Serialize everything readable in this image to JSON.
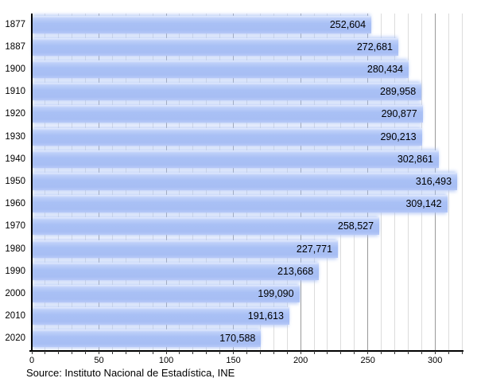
{
  "chart_data": {
    "type": "bar",
    "orientation": "horizontal",
    "title": "",
    "categories": [
      "1877",
      "1887",
      "1900",
      "1910",
      "1920",
      "1930",
      "1940",
      "1950",
      "1960",
      "1970",
      "1980",
      "1990",
      "2000",
      "2010",
      "2020"
    ],
    "values": [
      252604,
      272681,
      280434,
      289958,
      290877,
      290213,
      302861,
      316493,
      309142,
      258527,
      227771,
      213668,
      199090,
      191613,
      170588
    ],
    "value_labels": [
      "252,604",
      "272,681",
      "280,434",
      "289,958",
      "290,877",
      "290,213",
      "302,861",
      "316,493",
      "309,142",
      "258,527",
      "227,771",
      "213,668",
      "199,090",
      "191,613",
      "170,588"
    ],
    "x_axis": {
      "tick_labels": [
        0,
        50,
        100,
        150,
        200,
        250,
        300
      ],
      "minor_step": 10,
      "lim": [
        0,
        320
      ],
      "value_scale": 1000
    },
    "grid": {
      "vertical": true,
      "minor_every": 10,
      "major_every": 50
    },
    "source": "Source: Instituto Nacional de Estadística, INE",
    "colors": {
      "bar": "#a9c0f5",
      "bar_highlight": "#e3ebfd",
      "grid_minor": "#dcdcdc",
      "grid_major": "#999999",
      "axis": "#000000",
      "value_label": "#000000"
    }
  }
}
